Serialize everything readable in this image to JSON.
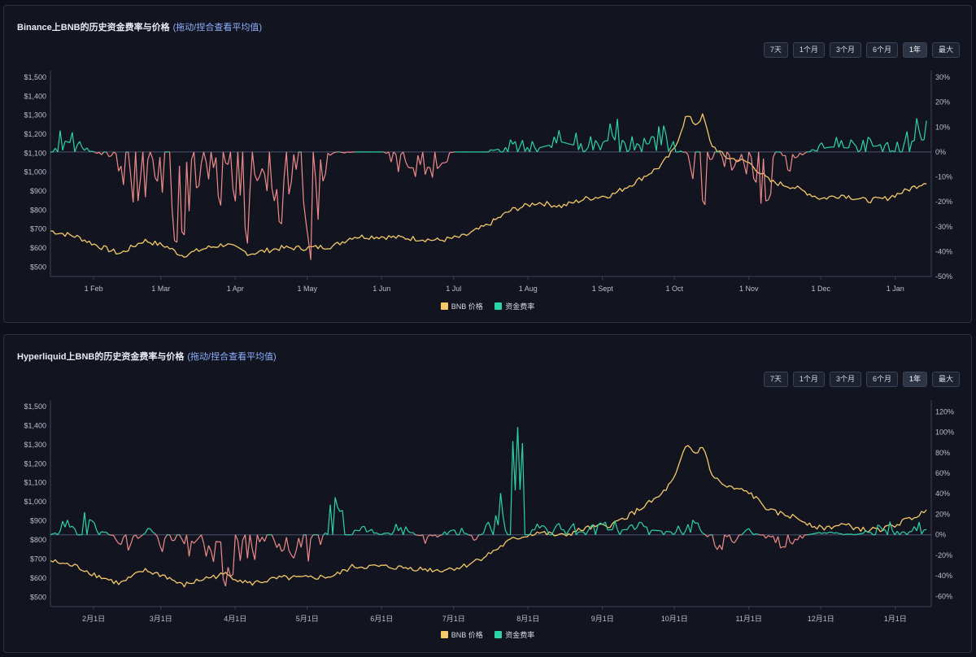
{
  "colors": {
    "price": "#f5c96a",
    "funding_pos": "#2dd4a7",
    "funding_neg": "#f08b8b",
    "zero_line": "#4a5370",
    "axis_text": "#b9bfcc"
  },
  "panels": [
    {
      "title": "Binance上BNB的历史资金费率与价格",
      "hint": "(拖动/捏合查看平均值)",
      "range_buttons": [
        "7天",
        "1个月",
        "3个月",
        "6个月",
        "1年",
        "最大"
      ],
      "active_range": "1年",
      "legend": [
        "BNB 价格",
        "资金费率"
      ]
    },
    {
      "title": "Hyperliquid上BNB的历史资金费率与价格",
      "hint": "(拖动/捏合查看平均值)",
      "range_buttons": [
        "7天",
        "1个月",
        "3个月",
        "6个月",
        "1年",
        "最大"
      ],
      "active_range": "1年",
      "legend": [
        "BNB 价格",
        "资金费率"
      ]
    }
  ],
  "chart_data": [
    {
      "type": "line",
      "title": "Binance上BNB的历史资金费率与价格",
      "x_ticks": [
        "1 Feb",
        "1 Mar",
        "1 Apr",
        "1 May",
        "1 Jun",
        "1 Jul",
        "1 Aug",
        "1 Sept",
        "1 Oct",
        "1 Nov",
        "1 Dec",
        "1 Jan"
      ],
      "left_axis": {
        "ticks": [
          "$1,500",
          "$1,400",
          "$1,300",
          "$1,200",
          "$1,100",
          "$1,000",
          "$900",
          "$800",
          "$700",
          "$600",
          "$500"
        ],
        "ylim": [
          450,
          1500
        ]
      },
      "right_axis": {
        "ticks": [
          "30%",
          "20%",
          "10%",
          "0%",
          "-10%",
          "-20%",
          "-30%",
          "-40%",
          "-50%"
        ],
        "ylim": [
          -50,
          30
        ]
      },
      "series": [
        {
          "name": "BNB 价格",
          "axis": "left",
          "x": [
            "2025-01-14",
            "2025-01-25",
            "2025-02-03",
            "2025-02-12",
            "2025-02-22",
            "2025-03-03",
            "2025-03-10",
            "2025-03-20",
            "2025-03-28",
            "2025-04-07",
            "2025-04-20",
            "2025-05-01",
            "2025-05-12",
            "2025-05-20",
            "2025-06-01",
            "2025-06-15",
            "2025-06-25",
            "2025-07-05",
            "2025-07-15",
            "2025-07-25",
            "2025-08-05",
            "2025-08-15",
            "2025-08-25",
            "2025-09-05",
            "2025-09-15",
            "2025-09-25",
            "2025-10-01",
            "2025-10-06",
            "2025-10-10",
            "2025-10-13",
            "2025-10-16",
            "2025-10-22",
            "2025-11-01",
            "2025-11-10",
            "2025-11-20",
            "2025-12-01",
            "2025-12-10",
            "2025-12-20",
            "2025-12-28",
            "2026-01-05",
            "2026-01-14"
          ],
          "y": [
            690,
            660,
            610,
            570,
            640,
            610,
            560,
            600,
            620,
            570,
            600,
            600,
            610,
            660,
            660,
            650,
            640,
            660,
            720,
            800,
            840,
            820,
            860,
            880,
            950,
            1030,
            1120,
            1300,
            1250,
            1300,
            1150,
            1080,
            1050,
            950,
            920,
            860,
            880,
            850,
            860,
            900,
            950
          ]
        },
        {
          "name": "资金费率",
          "axis": "right",
          "x": [
            "2025-01-14",
            "2025-01-20",
            "2025-02-01",
            "2025-02-10",
            "2025-02-20",
            "2025-03-01",
            "2025-03-08",
            "2025-03-15",
            "2025-03-22",
            "2025-03-29",
            "2025-04-05",
            "2025-04-12",
            "2025-04-19",
            "2025-04-26",
            "2025-05-03",
            "2025-05-10",
            "2025-05-20",
            "2025-06-01",
            "2025-06-05",
            "2025-06-12",
            "2025-06-20",
            "2025-07-01",
            "2025-07-15",
            "2025-07-25",
            "2025-08-05",
            "2025-08-15",
            "2025-08-25",
            "2025-09-05",
            "2025-09-15",
            "2025-09-25",
            "2025-10-05",
            "2025-10-12",
            "2025-10-20",
            "2025-10-28",
            "2025-11-05",
            "2025-11-15",
            "2025-11-25",
            "2025-12-05",
            "2025-12-15",
            "2025-12-25",
            "2026-01-05",
            "2026-01-14"
          ],
          "y": [
            0,
            9,
            0,
            -3,
            -20,
            -10,
            -30,
            -12,
            -6,
            -25,
            -40,
            -5,
            -28,
            -3,
            -30,
            -1,
            0,
            0,
            -6,
            -4,
            -10,
            0,
            0,
            5,
            3,
            8,
            3,
            10,
            5,
            8,
            -1,
            -20,
            -10,
            -3,
            -15,
            -8,
            0,
            4,
            3,
            5,
            8,
            10
          ]
        }
      ]
    },
    {
      "type": "line",
      "title": "Hyperliquid上BNB的历史资金费率与价格",
      "x_ticks": [
        "2月1日",
        "3月1日",
        "4月1日",
        "5月1日",
        "6月1日",
        "7月1日",
        "8月1日",
        "9月1日",
        "10月1日",
        "11月1日",
        "12月1日",
        "1月1日"
      ],
      "left_axis": {
        "ticks": [
          "$1,500",
          "$1,400",
          "$1,300",
          "$1,200",
          "$1,100",
          "$1,000",
          "$900",
          "$800",
          "$700",
          "$600",
          "$500"
        ],
        "ylim": [
          450,
          1500
        ]
      },
      "right_axis": {
        "ticks": [
          "120%",
          "100%",
          "80%",
          "60%",
          "40%",
          "20%",
          "0%",
          "-20%",
          "-40%",
          "-60%"
        ],
        "ylim": [
          -70,
          125
        ]
      },
      "series": [
        {
          "name": "BNB 价格",
          "axis": "left",
          "x": [
            "2025-01-14",
            "2025-01-25",
            "2025-02-03",
            "2025-02-12",
            "2025-02-22",
            "2025-03-03",
            "2025-03-10",
            "2025-03-20",
            "2025-03-28",
            "2025-04-07",
            "2025-04-20",
            "2025-05-01",
            "2025-05-12",
            "2025-05-20",
            "2025-06-01",
            "2025-06-15",
            "2025-06-25",
            "2025-07-05",
            "2025-07-15",
            "2025-07-25",
            "2025-08-05",
            "2025-08-15",
            "2025-08-25",
            "2025-09-05",
            "2025-09-15",
            "2025-09-25",
            "2025-10-01",
            "2025-10-06",
            "2025-10-10",
            "2025-10-13",
            "2025-10-16",
            "2025-10-22",
            "2025-11-01",
            "2025-11-10",
            "2025-11-20",
            "2025-12-01",
            "2025-12-10",
            "2025-12-20",
            "2025-12-28",
            "2026-01-05",
            "2026-01-14"
          ],
          "y": [
            690,
            660,
            610,
            570,
            640,
            610,
            560,
            600,
            620,
            570,
            600,
            600,
            610,
            660,
            660,
            650,
            640,
            660,
            720,
            800,
            840,
            820,
            860,
            880,
            950,
            1030,
            1120,
            1300,
            1250,
            1300,
            1150,
            1080,
            1050,
            950,
            920,
            860,
            880,
            850,
            860,
            900,
            950
          ]
        },
        {
          "name": "资金费率",
          "axis": "right",
          "x": [
            "2025-01-14",
            "2025-01-25",
            "2025-02-05",
            "2025-02-15",
            "2025-02-25",
            "2025-03-05",
            "2025-03-15",
            "2025-03-25",
            "2025-04-05",
            "2025-04-15",
            "2025-04-25",
            "2025-05-05",
            "2025-05-12",
            "2025-05-20",
            "2025-06-01",
            "2025-06-10",
            "2025-06-20",
            "2025-07-01",
            "2025-07-10",
            "2025-07-20",
            "2025-07-24",
            "2025-07-28",
            "2025-08-02",
            "2025-08-15",
            "2025-08-25",
            "2025-09-05",
            "2025-09-20",
            "2025-10-01",
            "2025-10-10",
            "2025-10-20",
            "2025-11-01",
            "2025-11-15",
            "2025-12-01",
            "2025-12-15",
            "2025-12-28",
            "2026-01-05",
            "2026-01-14"
          ],
          "y": [
            0,
            20,
            5,
            -15,
            10,
            -30,
            -10,
            -35,
            -25,
            -5,
            -15,
            -20,
            30,
            10,
            0,
            10,
            -10,
            10,
            -5,
            20,
            60,
            100,
            10,
            10,
            5,
            10,
            10,
            5,
            10,
            -15,
            5,
            -10,
            5,
            0,
            10,
            5,
            10
          ]
        }
      ]
    }
  ]
}
